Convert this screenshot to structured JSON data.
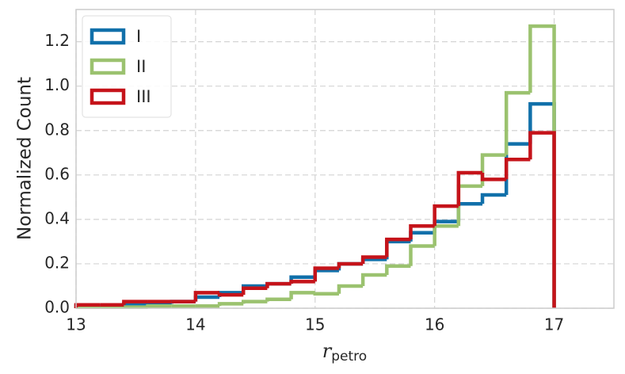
{
  "chart_data": {
    "type": "histogram-step",
    "ylabel": "Normalized Count",
    "xlabel": {
      "main": "r",
      "sub": "petro"
    },
    "bins": [
      13.0,
      13.2,
      13.4,
      13.6,
      13.8,
      14.0,
      14.2,
      14.4,
      14.6,
      14.8,
      15.0,
      15.2,
      15.4,
      15.6,
      15.8,
      16.0,
      16.2,
      16.4,
      16.6,
      16.8,
      17.0
    ],
    "series": [
      {
        "name": "I",
        "color": "#1170aa",
        "values": [
          0.01,
          0.01,
          0.02,
          0.02,
          0.03,
          0.05,
          0.07,
          0.1,
          0.11,
          0.14,
          0.17,
          0.2,
          0.22,
          0.3,
          0.34,
          0.39,
          0.47,
          0.51,
          0.74,
          0.92
        ]
      },
      {
        "name": "II",
        "color": "#9bc26f",
        "values": [
          0.005,
          0.005,
          0.005,
          0.01,
          0.01,
          0.01,
          0.02,
          0.03,
          0.04,
          0.07,
          0.065,
          0.1,
          0.15,
          0.19,
          0.28,
          0.37,
          0.55,
          0.69,
          0.97,
          1.27
        ]
      },
      {
        "name": "III",
        "color": "#c5131a",
        "values": [
          0.015,
          0.015,
          0.03,
          0.03,
          0.03,
          0.07,
          0.06,
          0.09,
          0.11,
          0.12,
          0.18,
          0.2,
          0.23,
          0.31,
          0.37,
          0.46,
          0.61,
          0.58,
          0.67,
          0.79
        ]
      }
    ],
    "xlim": [
      13,
      17.5
    ],
    "xticks": [
      13,
      14,
      15,
      16,
      17
    ],
    "ylim": [
      0,
      1.345
    ],
    "yticks": [
      {
        "value": 0,
        "label": "0.0"
      },
      0.2,
      0.4,
      0.6,
      0.8,
      {
        "value": 1,
        "label": "1.0"
      },
      1.2
    ],
    "grid": true,
    "legend": "upper-left"
  }
}
